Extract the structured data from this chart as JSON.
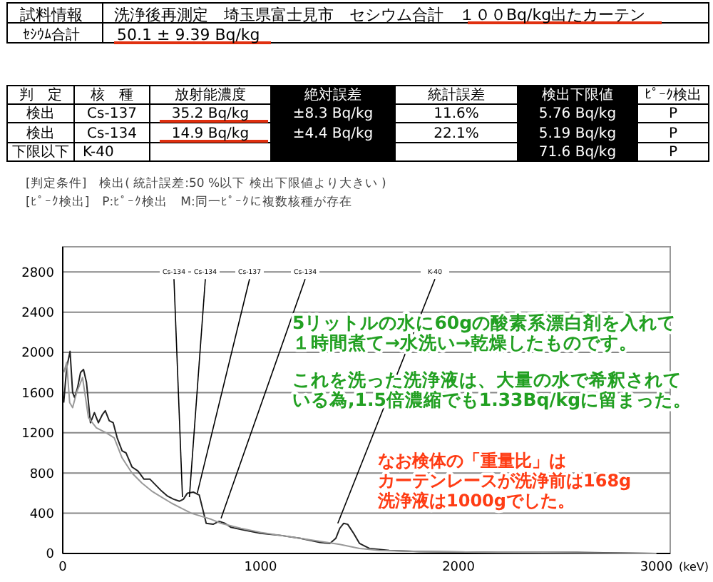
{
  "chart_data": {
    "type": "line",
    "xlabel": "(keV)",
    "series": [
      {
        "type": "line",
        "color": "#222222",
        "x": [
          5,
          20,
          37,
          50,
          60,
          75,
          90,
          105,
          120,
          140,
          160,
          180,
          200,
          215,
          235,
          255,
          275,
          300,
          320,
          350,
          380,
          410,
          440,
          470,
          500,
          530,
          560,
          590,
          610,
          630,
          660,
          690,
          710,
          725,
          760,
          790,
          820,
          850,
          900,
          1000,
          1100,
          1200,
          1300,
          1350,
          1380,
          1400,
          1420,
          1440,
          1470,
          1500,
          1550,
          1650,
          1800,
          2200,
          2600,
          3000
        ],
        "values": [
          1500,
          1850,
          2010,
          1600,
          1550,
          1650,
          1800,
          1830,
          1700,
          1300,
          1400,
          1300,
          1380,
          1420,
          1320,
          1300,
          1150,
          1020,
          1000,
          860,
          820,
          740,
          740,
          680,
          620,
          570,
          540,
          520,
          540,
          600,
          610,
          580,
          420,
          300,
          290,
          320,
          300,
          260,
          240,
          200,
          180,
          150,
          110,
          100,
          150,
          250,
          300,
          290,
          200,
          100,
          50,
          30,
          20,
          10,
          10,
          0
        ]
      },
      {
        "type": "line",
        "color": "#999999",
        "x": [
          5,
          20,
          35,
          50,
          70,
          100,
          130,
          170,
          220,
          260,
          300,
          350,
          400,
          450,
          500,
          550,
          600,
          650,
          700,
          750,
          800,
          900,
          1000,
          1100,
          1200,
          1300,
          1400,
          1500,
          1600,
          1800,
          2200,
          3000
        ],
        "values": [
          1800,
          1900,
          1500,
          1450,
          1600,
          1750,
          1350,
          1250,
          1200,
          1150,
          950,
          800,
          700,
          620,
          560,
          500,
          450,
          400,
          370,
          340,
          300,
          250,
          210,
          180,
          150,
          120,
          90,
          50,
          30,
          20,
          10,
          0
        ]
      }
    ],
    "xlim": [
      0,
      3070
    ],
    "xticks": [
      0,
      1000,
      2000,
      3000
    ],
    "ylim": [
      0,
      3050
    ],
    "yticks": [
      0,
      400,
      800,
      1200,
      1600,
      2000,
      2400,
      2800
    ],
    "grid": "y",
    "annotations": [
      "試料情報",
      "洗浄後再測定　埼玉県富士見市　セシウム合計　１００Bq/kg出たカーテン",
      "ｾｼｳﾑ合計",
      "50.1 ± 9.39 Bq/kg",
      "判　定",
      "核　種",
      "放射能濃度",
      "絶対誤差",
      "統計誤差",
      "検出下限値",
      "ﾋﾟｰｸ検出",
      "検出",
      "Cs-137",
      "35.2 Bq/kg",
      "±8.3 Bq/kg",
      "11.6%",
      "5.76 Bq/kg",
      "P",
      "検出",
      "Cs-134",
      "14.9 Bq/kg",
      "±4.4 Bq/kg",
      "22.1%",
      "5.19 Bq/kg",
      "P",
      "下限以下",
      "K-40",
      "71.6 Bq/kg",
      "P",
      "[判定条件]　検出( 統計誤差:50 %以下 検出下限値より大きい )",
      "[ﾋﾟｰｸ検出]　P:ﾋﾟｰｸ検出　M:同一ﾋﾟｰｸに複数核種が存在",
      "5リットルの水に60gの酸素系漂白剤を入れて",
      "１時間煮て→水洗い→乾燥したものです。",
      "これを洗った洗浄液は、大量の水で希釈されて",
      "いる為,1.5倍濃縮でも1.33Bq/kgに留まった。",
      "なお検体の「重量比」は",
      "カーテンレースが洗浄前は168g",
      "洗浄液は1000gでした。",
      {
        "text": "Cs-134",
        "x": 605,
        "y": 560
      },
      {
        "text": "Cs-134",
        "x": 640,
        "y": 560
      },
      {
        "text": "Cs-137",
        "x": 680,
        "y": 600
      },
      {
        "text": "Cs-134",
        "x": 800,
        "y": 350
      },
      {
        "text": "K-40",
        "x": 1390,
        "y": 300
      }
    ]
  }
}
